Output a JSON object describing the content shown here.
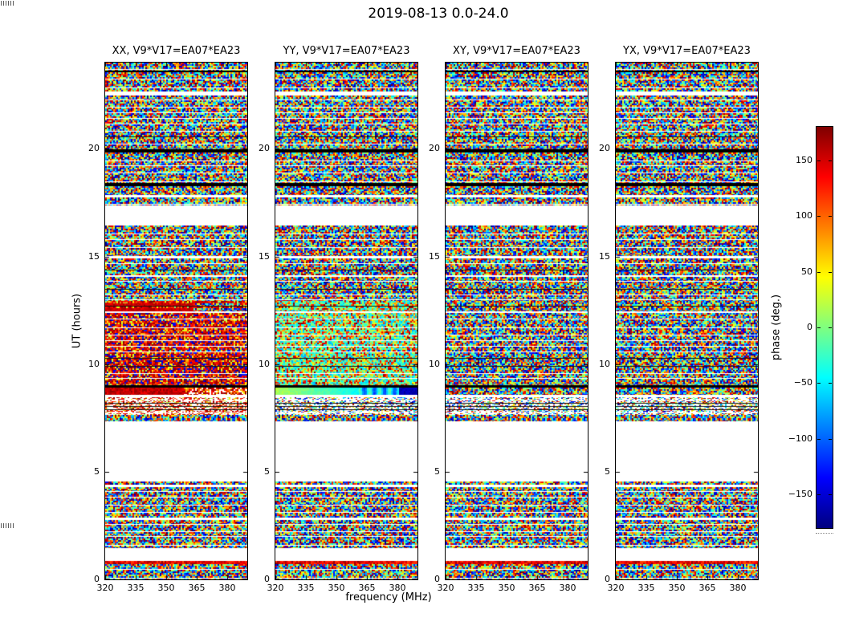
{
  "figure": {
    "title": "2019-08-13 0.0-24.0"
  },
  "axes": {
    "xlabel": "frequency (MHz)",
    "ylabel": "UT (hours)",
    "xtick_labels": [
      "320",
      "335",
      "350",
      "365",
      "380"
    ],
    "ytick_labels": [
      "0",
      "5",
      "10",
      "15",
      "20"
    ]
  },
  "colorbar": {
    "label": "phase (deg.)",
    "tick_labels": [
      "150",
      "100",
      "50",
      "0",
      "−50",
      "−100",
      "−150"
    ],
    "tick_values": [
      150,
      100,
      50,
      0,
      -50,
      -100,
      -150
    ],
    "range_deg": [
      -180,
      180
    ],
    "colormap": "jet",
    "stops": [
      "#00007F",
      "#0000FF",
      "#007FFF",
      "#00FFFF",
      "#7FFF7F",
      "#FFFF00",
      "#FF7F00",
      "#FF0000",
      "#7F0000"
    ]
  },
  "chart_data": {
    "type": "heatmap",
    "title": "2019-08-13 0.0-24.0",
    "xlabel": "frequency (MHz)",
    "ylabel": "UT (hours)",
    "zlabel": "phase (deg.)",
    "x_ticks": [
      320,
      335,
      350,
      365,
      380
    ],
    "y_ticks": [
      0,
      5,
      10,
      15,
      20
    ],
    "x_range_mhz": [
      320,
      390
    ],
    "y_range_hours": [
      0,
      24
    ],
    "z_range_deg": [
      -180,
      180
    ],
    "colormap": "jet",
    "legend_position": "right-colorbar",
    "grid": false,
    "description": "Visibility phase versus frequency (x) and UT time (y) for baseline V9*V17=EA07*EA23 on 2019-08-13. Phases are noise-like speckle spanning ±180 deg; horizontal white bands are no-data gaps common to all four polarisation panels; thin black bands are near ±180 deg scans. XX shows red-dominated (+phase) structure near UT 8.5-13; YY shows cyan/green (-phase to ~0) structure in the same interval.",
    "panels": [
      {
        "pol": "XX",
        "title": "XX, V9*V17=EA07*EA23",
        "feature": "red",
        "noise2_bias": [
          {
            "p": 0.35,
            "lo": 0.82,
            "hi": 1.0
          },
          {
            "p": 0.18,
            "lo": 0.02,
            "hi": 0.18
          }
        ],
        "sparse_bias": [
          {
            "p": 0.5,
            "lo": 0.8,
            "hi": 1.0
          }
        ]
      },
      {
        "pol": "YY",
        "title": "YY, V9*V17=EA07*EA23",
        "feature": "cyan",
        "noise2_bias": [
          {
            "p": 0.5,
            "lo": 0.28,
            "hi": 0.52
          }
        ],
        "sparse_bias": null
      },
      {
        "pol": "XY",
        "title": "XY, V9*V17=EA07*EA23",
        "feature": null,
        "noise2_bias": null,
        "sparse_bias": null
      },
      {
        "pol": "YX",
        "title": "YX, V9*V17=EA07*EA23",
        "feature": null,
        "noise2_bias": null,
        "sparse_bias": null
      }
    ],
    "accent_bias": [
      {
        "p": 0.8,
        "lo": 0.8,
        "hi": 0.98
      }
    ],
    "segments": [
      {
        "ut": [
          24.0,
          23.63
        ],
        "kind": "noise"
      },
      {
        "ut": [
          23.63,
          23.55
        ],
        "kind": "black"
      },
      {
        "ut": [
          23.55,
          22.66
        ],
        "kind": "noise"
      },
      {
        "ut": [
          22.66,
          22.47
        ],
        "kind": "white"
      },
      {
        "ut": [
          22.47,
          19.97
        ],
        "kind": "noise"
      },
      {
        "ut": [
          19.97,
          19.83
        ],
        "kind": "black"
      },
      {
        "ut": [
          19.83,
          18.41
        ],
        "kind": "noise"
      },
      {
        "ut": [
          18.41,
          18.26
        ],
        "kind": "black"
      },
      {
        "ut": [
          18.26,
          17.85
        ],
        "kind": "noise"
      },
      {
        "ut": [
          17.85,
          17.74
        ],
        "kind": "white"
      },
      {
        "ut": [
          17.74,
          17.37
        ],
        "kind": "noise"
      },
      {
        "ut": [
          17.37,
          16.43
        ],
        "kind": "white"
      },
      {
        "ut": [
          16.43,
          15.02
        ],
        "kind": "noise"
      },
      {
        "ut": [
          15.02,
          14.91
        ],
        "kind": "white"
      },
      {
        "ut": [
          14.91,
          14.12
        ],
        "kind": "noise"
      },
      {
        "ut": [
          14.12,
          14.05
        ],
        "kind": "white"
      },
      {
        "ut": [
          14.05,
          12.93
        ],
        "kind": "noise"
      },
      {
        "ut": [
          12.93,
          12.45
        ],
        "kind": "feature1"
      },
      {
        "ut": [
          12.45,
          12.37
        ],
        "kind": "white"
      },
      {
        "ut": [
          12.37,
          9.02
        ],
        "kind": "noise2"
      },
      {
        "ut": [
          9.02,
          8.91
        ],
        "kind": "black"
      },
      {
        "ut": [
          8.91,
          8.57
        ],
        "kind": "feature2"
      },
      {
        "ut": [
          8.57,
          8.46
        ],
        "kind": "white"
      },
      {
        "ut": [
          8.46,
          7.64
        ],
        "kind": "sparse"
      },
      {
        "ut": [
          7.64,
          7.34
        ],
        "kind": "noise"
      },
      {
        "ut": [
          7.34,
          4.55
        ],
        "kind": "white"
      },
      {
        "ut": [
          4.55,
          4.4
        ],
        "kind": "noise"
      },
      {
        "ut": [
          4.4,
          4.29
        ],
        "kind": "white"
      },
      {
        "ut": [
          4.29,
          2.87
        ],
        "kind": "noise"
      },
      {
        "ut": [
          2.87,
          2.76
        ],
        "kind": "white"
      },
      {
        "ut": [
          2.76,
          1.45
        ],
        "kind": "noise"
      },
      {
        "ut": [
          1.45,
          0.86
        ],
        "kind": "white"
      },
      {
        "ut": [
          0.86,
          0.71
        ],
        "kind": "accent"
      },
      {
        "ut": [
          0.71,
          0.0
        ],
        "kind": "noise"
      }
    ]
  }
}
